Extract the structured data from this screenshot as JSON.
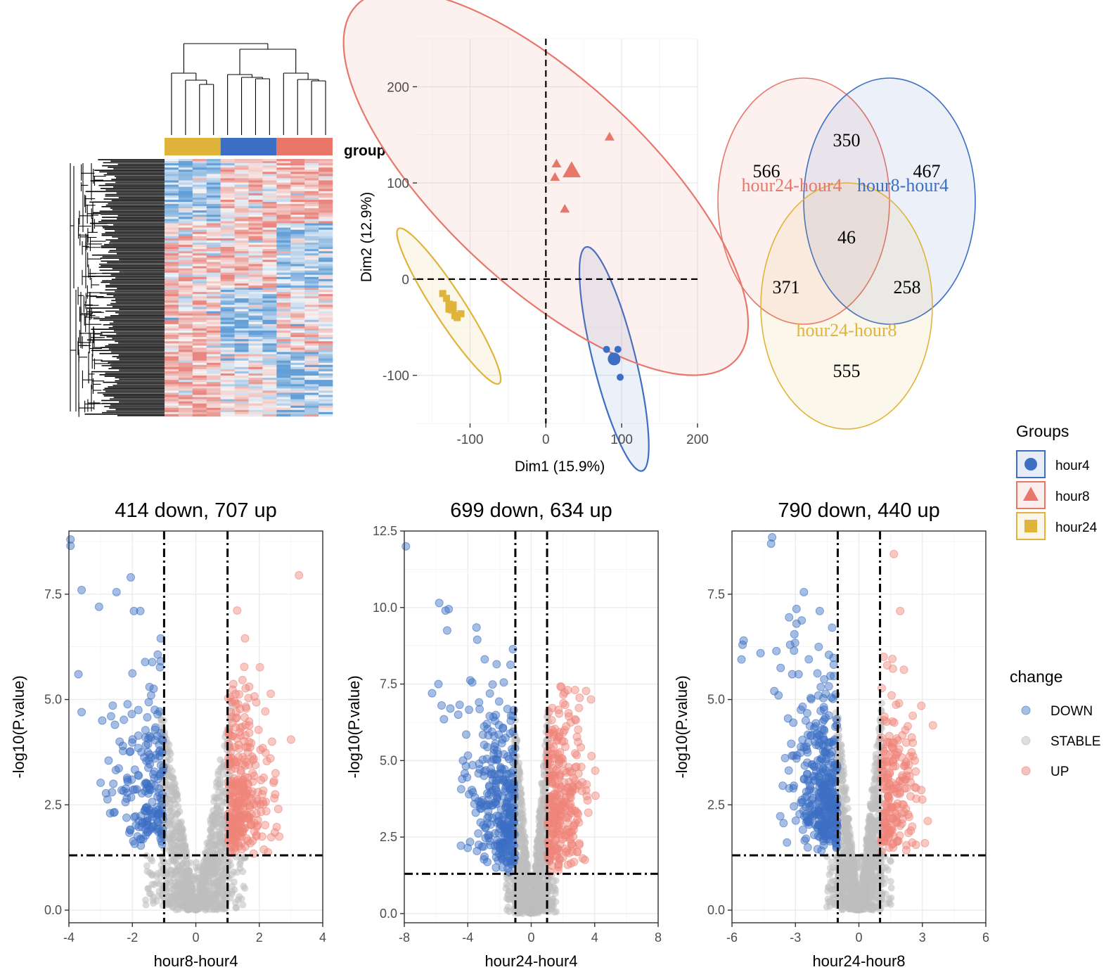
{
  "colors": {
    "hour4": "#3c6fc4",
    "hour8": "#e8776a",
    "hour24": "#e0b43a",
    "down": "#3c6fc4",
    "stable": "#bdbdbd",
    "up": "#ef8479",
    "heat_low": "#4a90d0",
    "heat_high": "#e5736a"
  },
  "chart_data": [
    {
      "type": "heatmap",
      "panel": "clustered-heatmap",
      "annotation_label": "group",
      "groups": [
        "hour24",
        "hour4",
        "hour8"
      ],
      "samples_per_group": 4
    },
    {
      "type": "scatter",
      "panel": "pca",
      "xlabel": "Dim1 (15.9%)",
      "ylabel": "Dim2 (12.9%)",
      "xlim": [
        -170,
        200
      ],
      "ylim": [
        -150,
        250
      ],
      "xticks": [
        -100,
        0,
        100,
        200
      ],
      "yticks": [
        -100,
        0,
        100,
        200
      ],
      "series": [
        {
          "name": "hour4",
          "shape": "circle",
          "points": [
            [
              80,
              -73
            ],
            [
              95,
              -73
            ],
            [
              88,
              -80
            ],
            [
              93,
              -85
            ],
            [
              98,
              -102
            ]
          ],
          "centroid": [
            90,
            -83
          ],
          "ellipse": {
            "center": [
              90,
              -83
            ],
            "rx": 28,
            "ry": 120,
            "angle_deg": -14
          }
        },
        {
          "name": "hour8",
          "shape": "triangle",
          "points": [
            [
              84,
              148
            ],
            [
              14,
              120
            ],
            [
              12,
              106
            ],
            [
              25,
              73
            ],
            [
              34,
              112
            ]
          ],
          "centroid": [
            34,
            113
          ],
          "ellipse": {
            "center": [
              0,
              100
            ],
            "rx": 135,
            "ry": 270,
            "angle_deg": -47
          }
        },
        {
          "name": "hour24",
          "shape": "square",
          "points": [
            [
              -136,
              -15
            ],
            [
              -131,
              -20
            ],
            [
              -127,
              -26
            ],
            [
              -124,
              -32
            ],
            [
              -120,
              -38
            ],
            [
              -117,
              -40
            ],
            [
              -112,
              -36
            ]
          ],
          "centroid": [
            -125,
            -29
          ],
          "ellipse": {
            "center": [
              -128,
              -28
            ],
            "rx": 20,
            "ry": 96,
            "angle_deg": -33
          }
        }
      ]
    },
    {
      "type": "venn",
      "panel": "venn",
      "sets": [
        "hour24-hour4",
        "hour8-hour4",
        "hour24-hour8"
      ],
      "regions": [
        {
          "sets": [
            "hour24-hour4"
          ],
          "value": 566
        },
        {
          "sets": [
            "hour8-hour4"
          ],
          "value": 467
        },
        {
          "sets": [
            "hour24-hour8"
          ],
          "value": 555
        },
        {
          "sets": [
            "hour24-hour4",
            "hour8-hour4"
          ],
          "value": 350
        },
        {
          "sets": [
            "hour24-hour4",
            "hour24-hour8"
          ],
          "value": 371
        },
        {
          "sets": [
            "hour8-hour4",
            "hour24-hour8"
          ],
          "value": 258
        },
        {
          "sets": [
            "hour24-hour4",
            "hour8-hour4",
            "hour24-hour8"
          ],
          "value": 46
        }
      ]
    },
    {
      "type": "scatter",
      "panel": "volcano-1",
      "title": "414 down, 707 up",
      "xlabel": "hour8-hour4",
      "ylabel": "-log10(P.value)",
      "xlim": [
        -4,
        4
      ],
      "ylim": [
        -0.3,
        9
      ],
      "xticks": [
        -4,
        -2,
        0,
        2,
        4
      ],
      "yticks": [
        0.0,
        2.5,
        5.0,
        7.5
      ],
      "ytick_labels": [
        "0.0",
        "2.5",
        "5.0",
        "7.5"
      ],
      "fc_cutoff": 1,
      "p_cutoff": 1.3,
      "down_count": 414,
      "up_count": 707,
      "highlight_points": [
        [
          -3.95,
          8.8
        ],
        [
          -3.95,
          8.65
        ],
        [
          -3.6,
          7.6
        ],
        [
          -3.05,
          7.2
        ],
        [
          -2.5,
          7.55
        ],
        [
          -2.05,
          7.9
        ],
        [
          -1.95,
          7.1
        ],
        [
          -1.75,
          7.1
        ],
        [
          -3.7,
          5.6
        ],
        [
          -3.6,
          4.7
        ],
        [
          -2.95,
          4.5
        ],
        [
          -2.55,
          4.4
        ],
        [
          -2.4,
          4.0
        ],
        [
          -2.3,
          3.9
        ],
        [
          -2.75,
          3.55
        ],
        [
          -2.6,
          3.0
        ],
        [
          -2.7,
          2.3
        ],
        [
          3.25,
          7.95
        ],
        [
          1.55,
          6.45
        ],
        [
          3.0,
          4.05
        ],
        [
          2.4,
          4.0
        ],
        [
          2.35,
          3.6
        ],
        [
          2.5,
          2.75
        ],
        [
          2.6,
          2.4
        ]
      ]
    },
    {
      "type": "scatter",
      "panel": "volcano-2",
      "title": "699 down, 634 up",
      "xlabel": "hour24-hour4",
      "ylabel": "-log10(P.value)",
      "xlim": [
        -8,
        8
      ],
      "ylim": [
        -0.3,
        12.5
      ],
      "xticks": [
        -8,
        -4,
        0,
        4,
        8
      ],
      "yticks": [
        0.0,
        2.5,
        5.0,
        7.5,
        10.0,
        12.5
      ],
      "ytick_labels": [
        "0.0",
        "2.5",
        "5.0",
        "7.5",
        "10.0",
        "12.5"
      ],
      "fc_cutoff": 1,
      "p_cutoff": 1.3,
      "down_count": 699,
      "up_count": 634,
      "highlight_points": [
        [
          -7.9,
          12.0
        ],
        [
          -5.8,
          10.15
        ],
        [
          -5.4,
          9.9
        ],
        [
          -5.2,
          9.95
        ],
        [
          -5.3,
          9.25
        ],
        [
          -3.45,
          9.35
        ],
        [
          -3.4,
          8.95
        ],
        [
          -5.85,
          7.5
        ],
        [
          -6.25,
          7.2
        ],
        [
          -5.65,
          6.8
        ],
        [
          -5.1,
          6.7
        ],
        [
          -5.5,
          6.35
        ],
        [
          -4.6,
          6.5
        ],
        [
          -4.1,
          5.85
        ],
        [
          -4.3,
          5.0
        ],
        [
          -3.7,
          4.85
        ],
        [
          -4.35,
          4.4
        ],
        [
          -3.55,
          3.8
        ],
        [
          -3.5,
          3.3
        ],
        [
          1.9,
          7.4
        ],
        [
          2.3,
          7.3
        ],
        [
          3.05,
          7.05
        ],
        [
          2.5,
          6.25
        ],
        [
          2.15,
          5.45
        ],
        [
          3.8,
          5.15
        ],
        [
          2.85,
          4.8
        ],
        [
          4.05,
          3.85
        ],
        [
          3.55,
          3.7
        ],
        [
          3.6,
          3.3
        ],
        [
          2.95,
          3.25
        ]
      ]
    },
    {
      "type": "scatter",
      "panel": "volcano-3",
      "title": "790 down, 440 up",
      "xlabel": "hour24-hour8",
      "ylabel": "-log10(P.value)",
      "xlim": [
        -6,
        6
      ],
      "ylim": [
        -0.3,
        9
      ],
      "xticks": [
        -6,
        -3,
        0,
        3,
        6
      ],
      "yticks": [
        0.0,
        2.5,
        5.0,
        7.5
      ],
      "ytick_labels": [
        "0.0",
        "2.5",
        "5.0",
        "7.5"
      ],
      "fc_cutoff": 1,
      "p_cutoff": 1.3,
      "down_count": 790,
      "up_count": 440,
      "highlight_points": [
        [
          -4.1,
          8.85
        ],
        [
          -4.15,
          8.7
        ],
        [
          -2.6,
          7.55
        ],
        [
          -2.95,
          7.15
        ],
        [
          -1.85,
          7.1
        ],
        [
          -3.3,
          6.95
        ],
        [
          -2.95,
          6.8
        ],
        [
          -3.05,
          6.55
        ],
        [
          -5.45,
          6.4
        ],
        [
          -5.5,
          6.3
        ],
        [
          -5.55,
          5.95
        ],
        [
          -4.65,
          6.1
        ],
        [
          -3.25,
          6.3
        ],
        [
          -3.9,
          6.15
        ],
        [
          -3.7,
          5.75
        ],
        [
          -3.15,
          5.6
        ],
        [
          -2.85,
          5.6
        ],
        [
          -4.0,
          5.2
        ],
        [
          -3.8,
          5.1
        ],
        [
          -3.35,
          4.55
        ],
        [
          -3.1,
          4.45
        ],
        [
          -3.2,
          3.95
        ],
        [
          -2.95,
          3.6
        ],
        [
          1.95,
          7.1
        ],
        [
          2.95,
          4.85
        ],
        [
          2.05,
          4.15
        ],
        [
          2.5,
          4.1
        ],
        [
          2.4,
          3.65
        ],
        [
          2.7,
          2.9
        ],
        [
          2.95,
          2.85
        ]
      ]
    }
  ],
  "legend_groups": {
    "title": "Groups",
    "items": [
      {
        "label": "hour4",
        "shape": "circle",
        "color": "#3c6fc4"
      },
      {
        "label": "hour8",
        "shape": "triangle",
        "color": "#e8776a"
      },
      {
        "label": "hour24",
        "shape": "square",
        "color": "#e0b43a"
      }
    ]
  },
  "legend_change": {
    "title": "change",
    "items": [
      {
        "label": "DOWN",
        "color": "#3c6fc4"
      },
      {
        "label": "STABLE",
        "color": "#bdbdbd"
      },
      {
        "label": "UP",
        "color": "#ef8479"
      }
    ]
  }
}
